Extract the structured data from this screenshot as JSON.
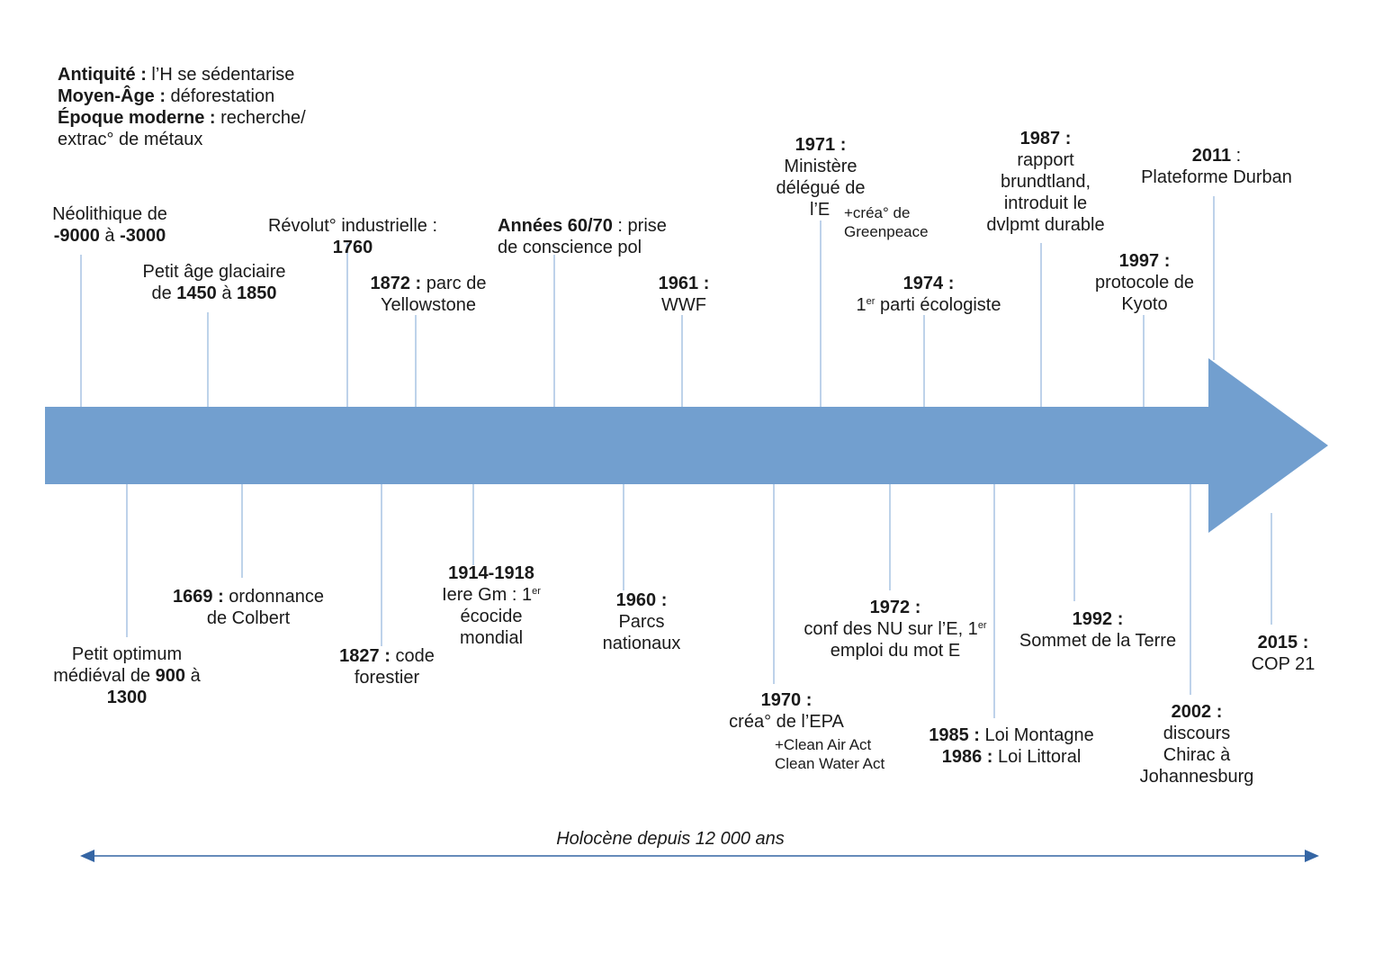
{
  "colors": {
    "arrow": "#729fcf",
    "connector": "#a9c4e3",
    "span_arrow": "#3465a4",
    "text": "#1a1a1a"
  },
  "intro": {
    "antiquite_bold": "Antiquité :",
    "antiquite_text": " l’H se sédentarise",
    "moyen_age_bold": "Moyen-Âge :",
    "moyen_age_text": " déforestation",
    "moderne_bold": "Époque moderne :",
    "moderne_text": " recherche/",
    "moderne_text2": "extrac° de métaux"
  },
  "above": {
    "neolithique": {
      "line1": "Néolithique de",
      "from": "-9000",
      "mid": " à ",
      "to": "-3000"
    },
    "glaciaire": {
      "line1": "Petit âge glaciaire",
      "pre": "de ",
      "from": "1450",
      "mid": " à ",
      "to": "1850"
    },
    "revolution": {
      "line1": "Révolut° industrielle :",
      "year": "1760"
    },
    "yellowstone": {
      "year": "1872 :",
      "text": " parc de",
      "line2": "Yellowstone"
    },
    "annees6070": {
      "bold": "Années 60/70",
      "text": " : prise",
      "line2": "de conscience pol"
    },
    "wwf": {
      "year": "1961 :",
      "line2": "WWF"
    },
    "ministere": {
      "year": "1971 :",
      "line2": "Ministère",
      "line3": "délégué de",
      "line4": "l’E",
      "extra1": "+créa° de",
      "extra2": "Greenpeace"
    },
    "parti": {
      "year": "1974 :",
      "sup": "er",
      "line2_pre": "1",
      "line2": " parti écologiste"
    },
    "brundtland": {
      "year": "1987 :",
      "line2": "rapport",
      "line3": "brundtland,",
      "line4": "introduit le",
      "line5": "dvlpmt durable"
    },
    "kyoto": {
      "year": "1997 :",
      "line2": "protocole de",
      "line3": "Kyoto"
    },
    "durban": {
      "year": "2011",
      "text": " :",
      "line2": "Plateforme Durban"
    }
  },
  "below": {
    "optimum": {
      "line1": "Petit optimum",
      "line2_pre": "médiéval de ",
      "from": "900",
      "mid": " à",
      "to": "1300"
    },
    "colbert": {
      "year": "1669 :",
      "text": " ordonnance",
      "line2": "de Colbert"
    },
    "forestier": {
      "year": "1827 :",
      "text": " code",
      "line2": "forestier"
    },
    "guerre": {
      "year": "1914-1918",
      "line2_pre": "Iere Gm : 1",
      "sup": "er",
      "line3": "écocide",
      "line4": "mondial"
    },
    "parcs": {
      "year": "1960 :",
      "line2": "Parcs",
      "line3": "nationaux"
    },
    "epa": {
      "year": "1970 :",
      "line2": "créa° de l’EPA",
      "extra1": "+Clean Air Act",
      "extra2": "Clean Water Act"
    },
    "conf": {
      "year": "1972 :",
      "line2_pre": "conf des NU sur l’E, 1",
      "sup": "er",
      "line3": "emploi du mot E"
    },
    "montagne": {
      "year1": "1985 :",
      "text1": " Loi Montagne",
      "year2": "1986 :",
      "text2": " Loi Littoral"
    },
    "sommet": {
      "year": "1992 :",
      "line2": "Sommet de la Terre"
    },
    "chirac": {
      "year": "2002 :",
      "line2": "discours",
      "line3": "Chirac à",
      "line4": "Johannesburg"
    },
    "cop": {
      "year": "2015 :",
      "line2": "COP 21"
    }
  },
  "span": {
    "label": "Holocène depuis 12 000 ans"
  }
}
